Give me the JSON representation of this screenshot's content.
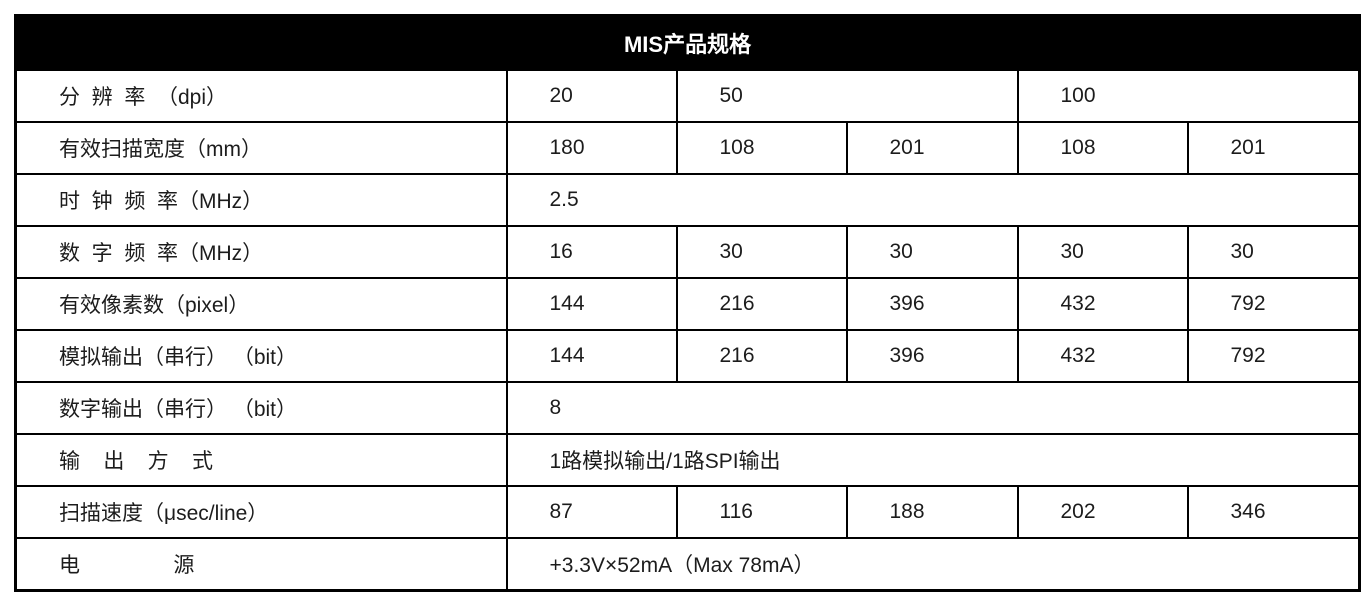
{
  "title": "MIS产品规格",
  "colors": {
    "header_bg": "#000000",
    "header_text": "#ffffff",
    "border": "#000000",
    "cell_text": "#1c1c1c",
    "page_bg": "#ffffff"
  },
  "rows": [
    {
      "label": "分  辨  率  （dpi）",
      "values": [
        "20",
        "50",
        "100"
      ]
    },
    {
      "label": "有效扫描宽度（mm）",
      "values": [
        "180",
        "108",
        "201",
        "108",
        "201"
      ]
    },
    {
      "label": "时  钟  频  率（MHz）",
      "values": [
        "2.5"
      ]
    },
    {
      "label": "数  字  频  率（MHz）",
      "values": [
        "16",
        "30",
        "30",
        "30",
        "30"
      ]
    },
    {
      "label": "有效像素数（pixel）",
      "values": [
        "144",
        "216",
        "396",
        "432",
        "792"
      ]
    },
    {
      "label": "模拟输出（串行） （bit）",
      "values": [
        "144",
        "216",
        "396",
        "432",
        "792"
      ]
    },
    {
      "label": "数字输出（串行） （bit）",
      "values": [
        "8"
      ]
    },
    {
      "label": "输    出    方    式",
      "values": [
        "1路模拟输出/1路SPI输出"
      ]
    },
    {
      "label": "扫描速度（μsec/line）",
      "values": [
        "87",
        "116",
        "188",
        "202",
        "346"
      ]
    },
    {
      "label": "电                源",
      "values": [
        "+3.3V×52mA（Max 78mA）"
      ]
    }
  ]
}
